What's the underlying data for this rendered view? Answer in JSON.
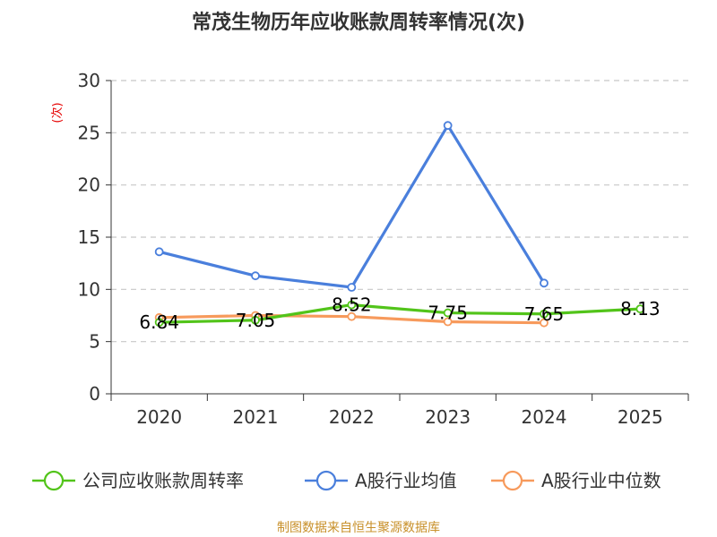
{
  "chart_data": {
    "type": "line",
    "title": "常茂生物历年应收账款周转率情况(次)",
    "ylabel": "(次)",
    "xlabel": "",
    "ylim": [
      0,
      30
    ],
    "yticks": [
      0,
      5,
      10,
      15,
      20,
      25,
      30
    ],
    "grid": true,
    "legend_position": "bottom",
    "categories": [
      "2020",
      "2021",
      "2022",
      "2023",
      "2024",
      "2025"
    ],
    "series": [
      {
        "name": "公司应收账款周转率",
        "color": "#52c41a",
        "values": [
          6.84,
          7.05,
          8.52,
          7.75,
          7.65,
          8.13
        ],
        "labels": [
          "6.84",
          "7.05",
          "8.52",
          "7.75",
          "7.65",
          "8.13"
        ]
      },
      {
        "name": "A股行业均值",
        "color": "#4a7fdc",
        "values": [
          13.6,
          11.3,
          10.2,
          25.7,
          10.6,
          null
        ]
      },
      {
        "name": "A股行业中位数",
        "color": "#f79a5c",
        "values": [
          7.3,
          7.5,
          7.4,
          6.9,
          6.8,
          null
        ]
      }
    ],
    "source": "制图数据来自恒生聚源数据库"
  }
}
